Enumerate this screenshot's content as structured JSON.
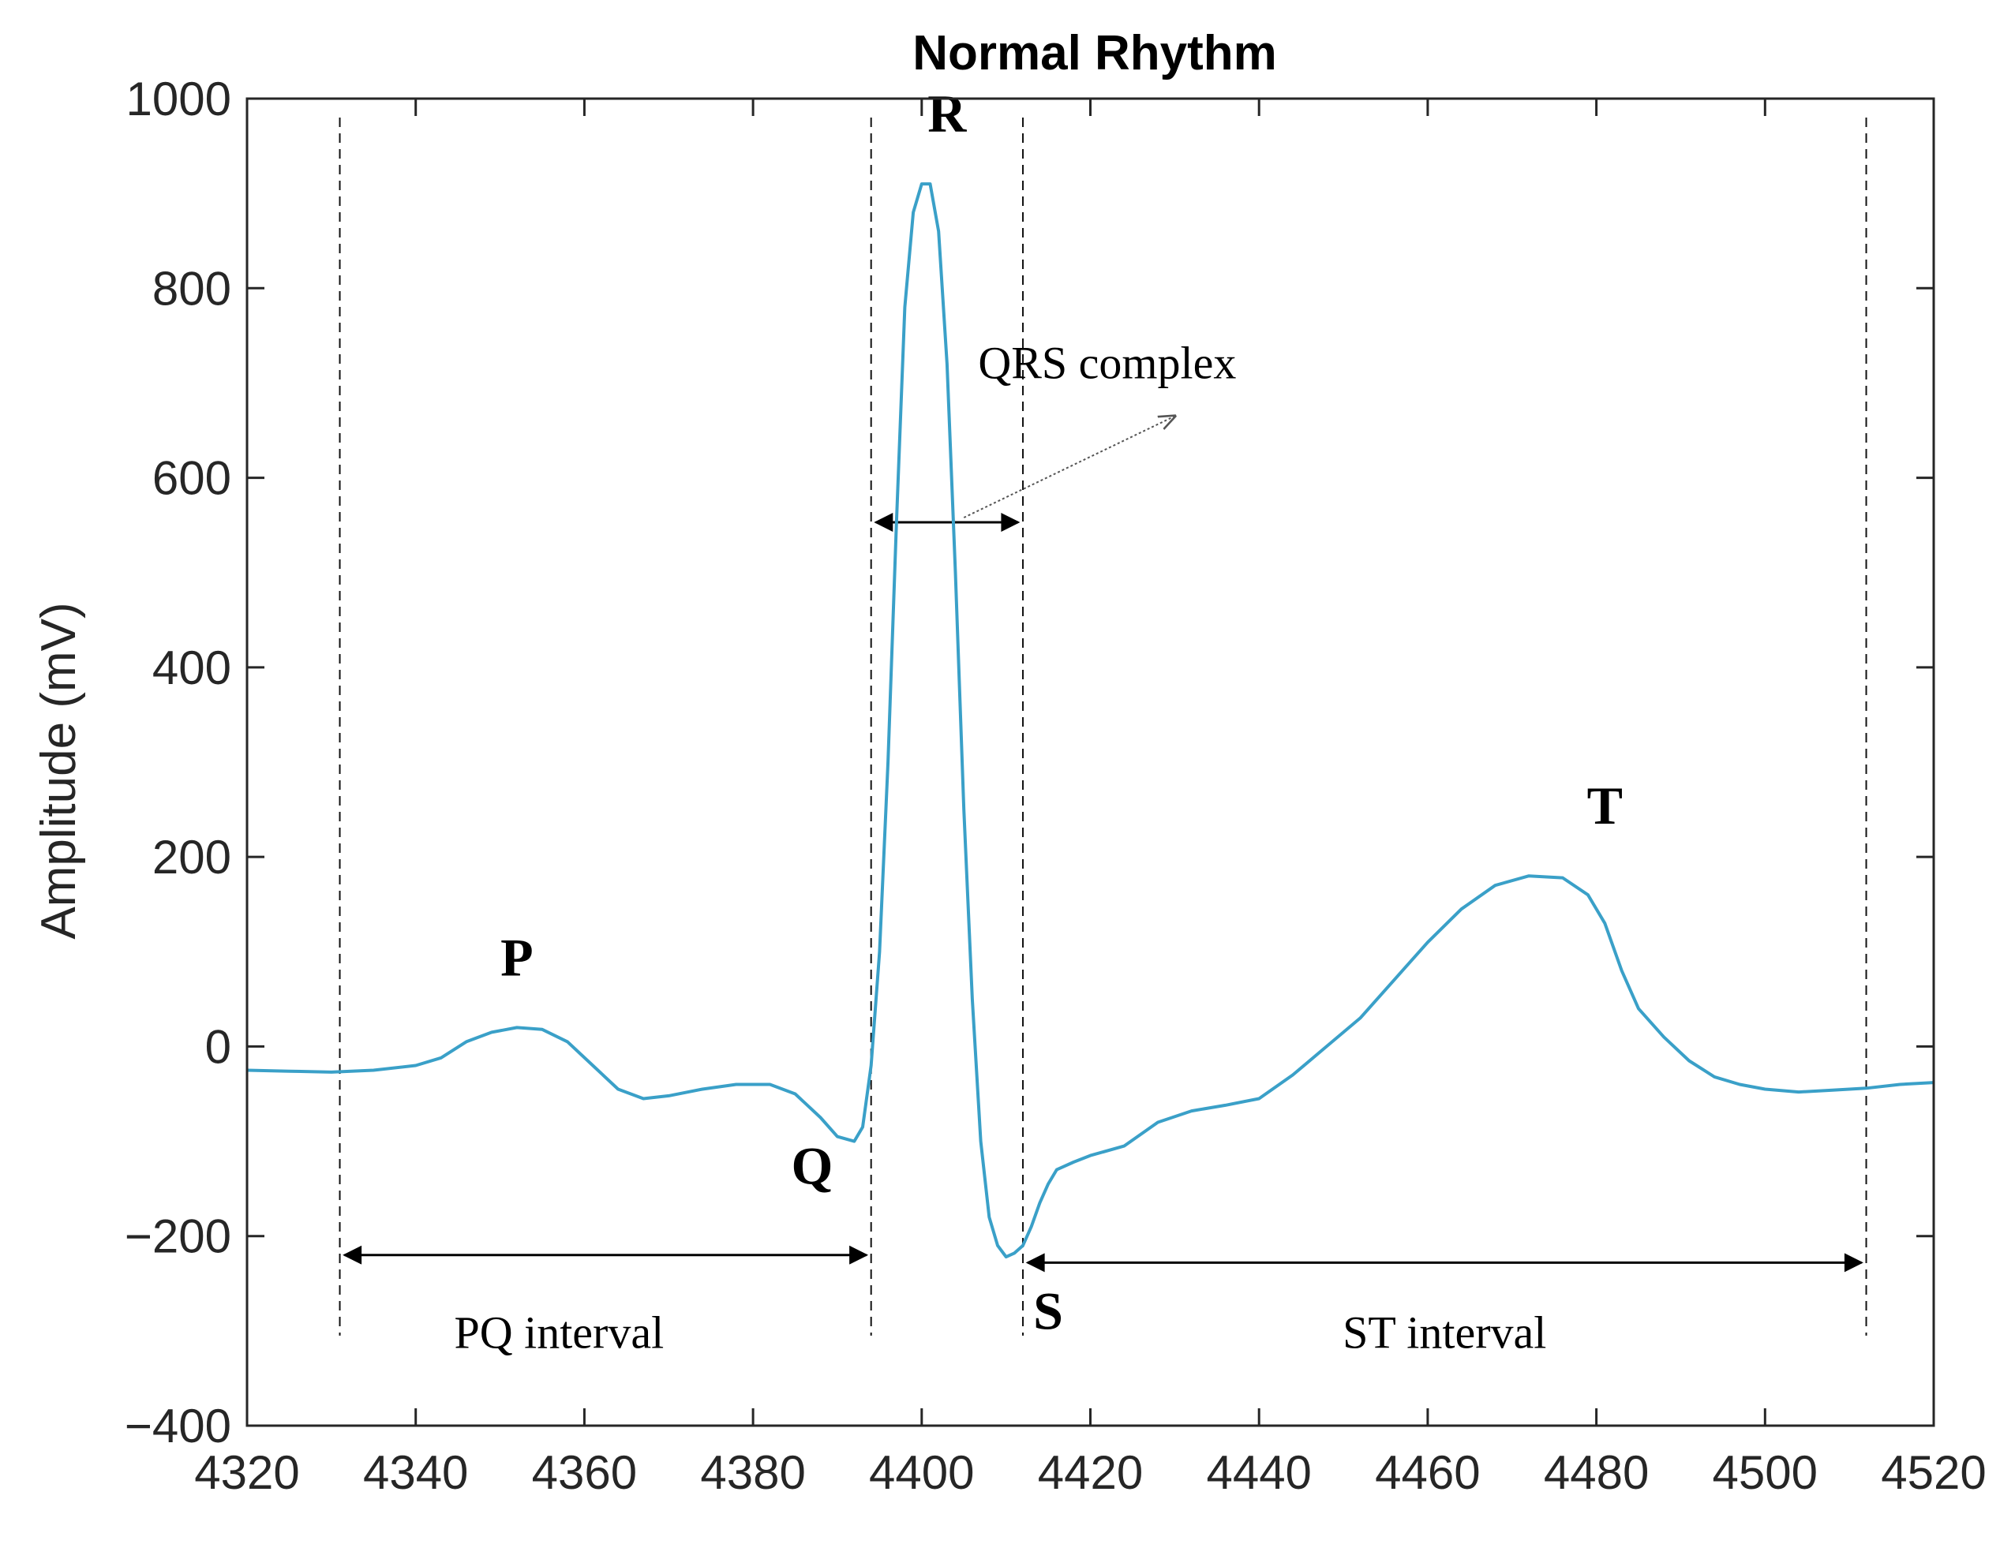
{
  "chart_data": {
    "type": "line",
    "title": "Normal Rhythm",
    "xlabel": "",
    "ylabel": "Amplitude (mV)",
    "xlim": [
      4320,
      4520
    ],
    "ylim": [
      -400,
      1000
    ],
    "x_ticks": [
      4320,
      4340,
      4360,
      4380,
      4400,
      4420,
      4440,
      4460,
      4480,
      4500,
      4520
    ],
    "y_ticks": [
      -400,
      -200,
      0,
      200,
      400,
      600,
      800,
      1000
    ],
    "y_tick_labels": [
      "−400",
      "−200",
      "0",
      "200",
      "400",
      "600",
      "800",
      "1000"
    ],
    "grid": false,
    "line_color": "#3aa0c8",
    "series": [
      {
        "x": [
          4320,
          4325,
          4330,
          4335,
          4340,
          4343,
          4346,
          4349,
          4352,
          4355,
          4358,
          4361,
          4364,
          4367,
          4370,
          4374,
          4378,
          4382,
          4385,
          4388,
          4390,
          4392,
          4393,
          4394,
          4395,
          4396,
          4397,
          4398,
          4399,
          4400,
          4401,
          4402,
          4403,
          4404,
          4405,
          4406,
          4407,
          4408,
          4409,
          4410,
          4411,
          4412,
          4413,
          4414,
          4415,
          4416,
          4418,
          4420,
          4424,
          4428,
          4432,
          4436,
          4440,
          4444,
          4448,
          4452,
          4456,
          4460,
          4464,
          4468,
          4472,
          4476,
          4479,
          4481,
          4483,
          4485,
          4488,
          4491,
          4494,
          4497,
          4500,
          4504,
          4508,
          4512,
          4516,
          4520
        ],
        "y": [
          -25,
          -26,
          -27,
          -25,
          -20,
          -12,
          5,
          15,
          20,
          18,
          5,
          -20,
          -45,
          -55,
          -52,
          -45,
          -40,
          -40,
          -50,
          -75,
          -95,
          -100,
          -85,
          -20,
          100,
          300,
          550,
          780,
          880,
          910,
          910,
          860,
          720,
          500,
          250,
          50,
          -100,
          -180,
          -210,
          -222,
          -218,
          -210,
          -190,
          -165,
          -145,
          -130,
          -122,
          -115,
          -105,
          -80,
          -68,
          -62,
          -55,
          -30,
          0,
          30,
          70,
          110,
          145,
          170,
          180,
          178,
          160,
          130,
          80,
          40,
          10,
          -15,
          -32,
          -40,
          -45,
          -48,
          -46,
          -44,
          -40,
          -38
        ]
      }
    ],
    "annotations": [
      {
        "text": "P",
        "x": 4352,
        "y": 75
      },
      {
        "text": "Q",
        "x": 4387,
        "y": -145
      },
      {
        "text": "R",
        "x": 4403,
        "y": 965
      },
      {
        "text": "S",
        "x": 4415,
        "y": -298
      },
      {
        "text": "T",
        "x": 4481,
        "y": 235
      },
      {
        "text": "PQ interval",
        "x": 4357,
        "y": -318
      },
      {
        "text": "QRS complex",
        "x": 4422,
        "y": 705
      },
      {
        "text": "ST interval",
        "x": 4462,
        "y": -318
      }
    ],
    "vertical_markers": [
      4331,
      4394,
      4412,
      4512
    ],
    "interval_arrows": [
      {
        "from": 4331,
        "to": 4394,
        "y": -220
      },
      {
        "from": 4394,
        "to": 4412,
        "y": 553
      },
      {
        "from": 4412,
        "to": 4512,
        "y": -228
      }
    ],
    "callout": {
      "from": [
        4405,
        558
      ],
      "to": [
        4430,
        665
      ]
    }
  }
}
